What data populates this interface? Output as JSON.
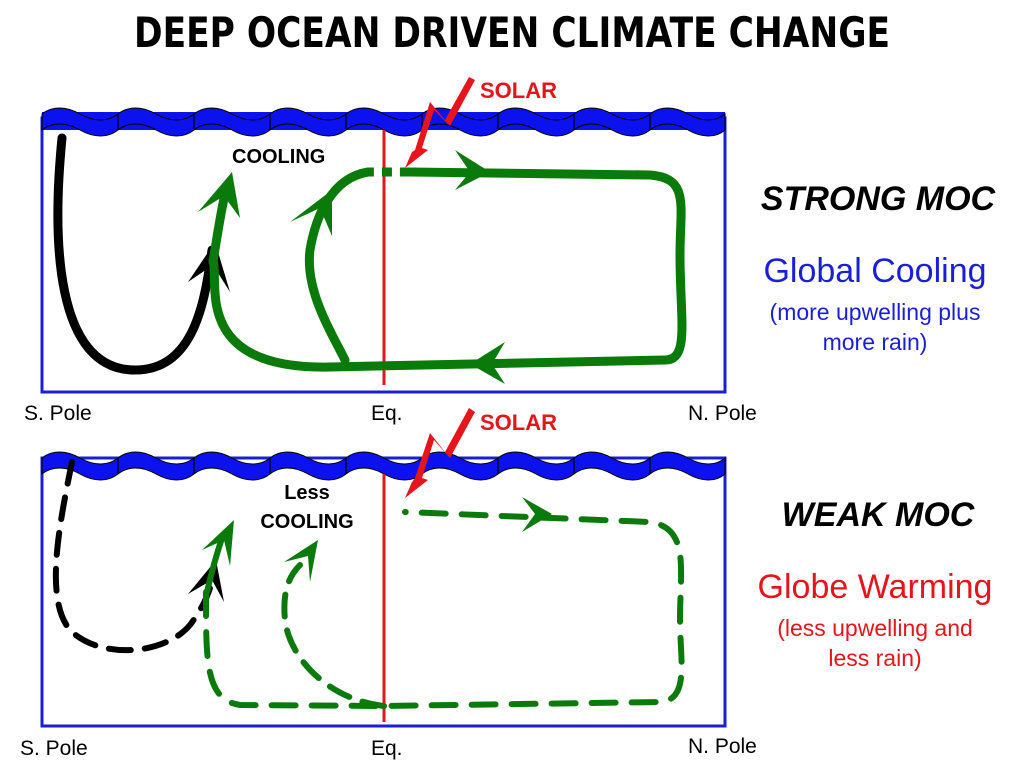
{
  "title": "DEEP OCEAN DRIVEN CLIMATE CHANGE",
  "colors": {
    "ocean_surface": "#0b12ee",
    "box_border": "#1a1fd6",
    "equator": "#e6141b",
    "solar": "#e6141b",
    "circulation": "#0a7a0a",
    "southern_cell": "#000000",
    "cooling_text": "#1a1fd6",
    "warming_text": "#e6141b"
  },
  "top_panel": {
    "solar_label": "SOLAR",
    "cooling_label": "COOLING",
    "axis": {
      "south": "S. Pole",
      "equator": "Eq.",
      "north": "N. Pole"
    },
    "heading": "STRONG MOC",
    "outcome": "Global Cooling",
    "explanation_line1": "(more upwelling plus",
    "explanation_line2": "more rain)"
  },
  "bottom_panel": {
    "solar_label": "SOLAR",
    "cooling_line1": "Less",
    "cooling_line2": "COOLING",
    "axis": {
      "south": "S. Pole",
      "equator": "Eq.",
      "north": "N. Pole"
    },
    "heading": "WEAK MOC",
    "outcome": "Globe Warming",
    "explanation_line1": "(less upwelling and",
    "explanation_line2": "less rain)"
  }
}
